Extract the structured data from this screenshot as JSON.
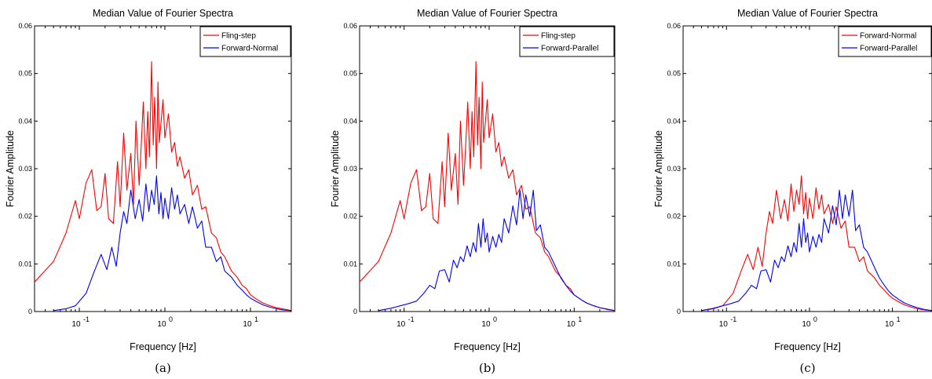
{
  "chart_data": [
    {
      "type": "line",
      "panel": "(a)",
      "title": "Median Value of Fourier Spectra",
      "xlabel": "Frequency [Hz]",
      "ylabel": "Fourier Amplitude",
      "xscale": "log",
      "xlim": [
        0.03,
        30
      ],
      "ylim": [
        0,
        0.06
      ],
      "xticks": [
        {
          "value": 0.1,
          "base": "10",
          "exp": "-1"
        },
        {
          "value": 1,
          "base": "10",
          "exp": "0"
        },
        {
          "value": 10,
          "base": "10",
          "exp": "1"
        }
      ],
      "yticks": [
        0,
        0.01,
        0.02,
        0.03,
        0.04,
        0.05,
        0.06
      ],
      "grid": false,
      "legend": "top-right",
      "series": [
        {
          "name": "Fling-step",
          "color": "#ff0000",
          "x": [
            0.03,
            0.05,
            0.07,
            0.09,
            0.1,
            0.12,
            0.14,
            0.16,
            0.18,
            0.2,
            0.22,
            0.25,
            0.28,
            0.3,
            0.33,
            0.36,
            0.4,
            0.43,
            0.46,
            0.5,
            0.53,
            0.56,
            0.6,
            0.63,
            0.66,
            0.7,
            0.73,
            0.76,
            0.8,
            0.83,
            0.86,
            0.9,
            0.95,
            1.0,
            1.1,
            1.2,
            1.3,
            1.4,
            1.5,
            1.7,
            1.9,
            2.1,
            2.4,
            2.7,
            3.0,
            3.5,
            4.0,
            4.5,
            5.0,
            6.0,
            7.0,
            8.0,
            9.0,
            10.0,
            12.0,
            14.0,
            17.0,
            20.0,
            25.0,
            30.0
          ],
          "values": [
            0.0062,
            0.0105,
            0.0165,
            0.0233,
            0.0195,
            0.027,
            0.0298,
            0.0212,
            0.022,
            0.029,
            0.0195,
            0.0185,
            0.0315,
            0.022,
            0.0375,
            0.0255,
            0.0332,
            0.0225,
            0.04,
            0.0265,
            0.035,
            0.044,
            0.03,
            0.042,
            0.0325,
            0.0525,
            0.035,
            0.045,
            0.03,
            0.0482,
            0.0355,
            0.0395,
            0.0445,
            0.0365,
            0.0415,
            0.0335,
            0.0355,
            0.0305,
            0.0325,
            0.028,
            0.0298,
            0.0245,
            0.0265,
            0.0215,
            0.022,
            0.0165,
            0.0155,
            0.0125,
            0.0115,
            0.0085,
            0.0072,
            0.0055,
            0.0048,
            0.0035,
            0.0025,
            0.0018,
            0.0012,
            0.0008,
            0.0005,
            0.0002
          ]
        },
        {
          "name": "Forward-Normal",
          "color": "#0000ff",
          "x": [
            0.05,
            0.07,
            0.09,
            0.12,
            0.15,
            0.18,
            0.21,
            0.24,
            0.27,
            0.3,
            0.33,
            0.36,
            0.4,
            0.45,
            0.5,
            0.55,
            0.6,
            0.65,
            0.7,
            0.75,
            0.8,
            0.85,
            0.9,
            0.95,
            1.0,
            1.1,
            1.2,
            1.3,
            1.4,
            1.5,
            1.7,
            1.9,
            2.1,
            2.4,
            2.7,
            3.0,
            3.5,
            4.0,
            4.5,
            5.0,
            6.0,
            7.0,
            8.0,
            9.0,
            10.0,
            12.0,
            14.0,
            17.0,
            20.0,
            25.0,
            30.0
          ],
          "values": [
            0.0002,
            0.0006,
            0.0012,
            0.0038,
            0.0085,
            0.012,
            0.0088,
            0.0135,
            0.0095,
            0.0165,
            0.021,
            0.0185,
            0.0255,
            0.0195,
            0.0235,
            0.019,
            0.0268,
            0.021,
            0.0255,
            0.0225,
            0.0285,
            0.0205,
            0.025,
            0.0195,
            0.0238,
            0.0195,
            0.026,
            0.0215,
            0.0245,
            0.0205,
            0.0225,
            0.0185,
            0.022,
            0.0175,
            0.019,
            0.0135,
            0.0135,
            0.0105,
            0.0115,
            0.0085,
            0.0072,
            0.0055,
            0.0045,
            0.0035,
            0.0028,
            0.002,
            0.0014,
            0.0009,
            0.0006,
            0.0003,
            0.0002
          ]
        }
      ]
    },
    {
      "type": "line",
      "panel": "(b)",
      "title": "Median Value of Fourier Spectra",
      "xlabel": "Frequency [Hz]",
      "ylabel": "Fourier Amplitude",
      "xscale": "log",
      "xlim": [
        0.03,
        30
      ],
      "ylim": [
        0,
        0.06
      ],
      "xticks": [
        {
          "value": 0.1,
          "base": "10",
          "exp": "-1"
        },
        {
          "value": 1,
          "base": "10",
          "exp": "0"
        },
        {
          "value": 10,
          "base": "10",
          "exp": "1"
        }
      ],
      "yticks": [
        0,
        0.01,
        0.02,
        0.03,
        0.04,
        0.05,
        0.06
      ],
      "grid": false,
      "legend": "top-right",
      "series": [
        {
          "name": "Fling-step",
          "color": "#ff0000",
          "x": [
            0.03,
            0.05,
            0.07,
            0.09,
            0.1,
            0.12,
            0.14,
            0.16,
            0.18,
            0.2,
            0.22,
            0.25,
            0.28,
            0.3,
            0.33,
            0.36,
            0.4,
            0.43,
            0.46,
            0.5,
            0.53,
            0.56,
            0.6,
            0.63,
            0.66,
            0.7,
            0.73,
            0.76,
            0.8,
            0.83,
            0.86,
            0.9,
            0.95,
            1.0,
            1.1,
            1.2,
            1.3,
            1.4,
            1.5,
            1.7,
            1.9,
            2.1,
            2.4,
            2.7,
            3.0,
            3.5,
            4.0,
            4.5,
            5.0,
            6.0,
            7.0,
            8.0,
            9.0,
            10.0,
            12.0,
            14.0,
            17.0,
            20.0,
            25.0,
            30.0
          ],
          "values": [
            0.0062,
            0.0105,
            0.0165,
            0.0233,
            0.0195,
            0.027,
            0.0298,
            0.0212,
            0.022,
            0.029,
            0.0195,
            0.0185,
            0.0315,
            0.022,
            0.0375,
            0.0255,
            0.0332,
            0.0225,
            0.04,
            0.0265,
            0.035,
            0.044,
            0.03,
            0.042,
            0.0325,
            0.0525,
            0.035,
            0.045,
            0.03,
            0.0482,
            0.0355,
            0.0395,
            0.0445,
            0.0365,
            0.0415,
            0.0335,
            0.0355,
            0.0305,
            0.0325,
            0.028,
            0.0298,
            0.0245,
            0.0265,
            0.0215,
            0.022,
            0.0165,
            0.0155,
            0.0125,
            0.0115,
            0.0085,
            0.0072,
            0.0055,
            0.0048,
            0.0035,
            0.0025,
            0.0018,
            0.0012,
            0.0008,
            0.0005,
            0.0002
          ]
        },
        {
          "name": "Forward-Parallel",
          "color": "#0000ff",
          "x": [
            0.05,
            0.07,
            0.09,
            0.11,
            0.14,
            0.17,
            0.2,
            0.23,
            0.26,
            0.3,
            0.34,
            0.38,
            0.42,
            0.46,
            0.5,
            0.55,
            0.6,
            0.65,
            0.7,
            0.75,
            0.8,
            0.85,
            0.9,
            0.95,
            1.0,
            1.1,
            1.2,
            1.3,
            1.4,
            1.5,
            1.7,
            1.9,
            2.1,
            2.3,
            2.5,
            2.7,
            3.0,
            3.3,
            3.6,
            4.0,
            4.5,
            5.0,
            6.0,
            7.0,
            8.0,
            9.0,
            10.0,
            12.0,
            14.0,
            17.0,
            20.0,
            25.0,
            30.0
          ],
          "values": [
            0.0002,
            0.0007,
            0.0012,
            0.0016,
            0.0022,
            0.0038,
            0.0055,
            0.0048,
            0.0085,
            0.0088,
            0.0062,
            0.0108,
            0.0092,
            0.0115,
            0.0105,
            0.0138,
            0.0115,
            0.0145,
            0.0125,
            0.0185,
            0.0135,
            0.0195,
            0.0145,
            0.0165,
            0.0125,
            0.0158,
            0.0135,
            0.0162,
            0.0145,
            0.0195,
            0.0165,
            0.0222,
            0.0182,
            0.0255,
            0.0195,
            0.0245,
            0.02,
            0.0255,
            0.017,
            0.0182,
            0.0135,
            0.0125,
            0.0095,
            0.007,
            0.0055,
            0.0043,
            0.0035,
            0.0025,
            0.0018,
            0.0012,
            0.0008,
            0.0004,
            0.0002
          ]
        }
      ]
    },
    {
      "type": "line",
      "panel": "(c)",
      "title": "Median Value of Fourier Spectra",
      "xlabel": "Frequency [Hz]",
      "ylabel": "Fourier Amplitude",
      "xscale": "log",
      "xlim": [
        0.03,
        30
      ],
      "ylim": [
        0,
        0.06
      ],
      "xticks": [
        {
          "value": 0.1,
          "base": "10",
          "exp": "-1"
        },
        {
          "value": 1,
          "base": "10",
          "exp": "0"
        },
        {
          "value": 10,
          "base": "10",
          "exp": "1"
        }
      ],
      "yticks": [
        0,
        0.01,
        0.02,
        0.03,
        0.04,
        0.05,
        0.06
      ],
      "grid": false,
      "legend": "top-right",
      "series": [
        {
          "name": "Forward-Normal",
          "color": "#ff0000",
          "x": [
            0.05,
            0.07,
            0.09,
            0.12,
            0.15,
            0.18,
            0.21,
            0.24,
            0.27,
            0.3,
            0.33,
            0.36,
            0.4,
            0.45,
            0.5,
            0.55,
            0.6,
            0.65,
            0.7,
            0.75,
            0.8,
            0.85,
            0.9,
            0.95,
            1.0,
            1.1,
            1.2,
            1.3,
            1.4,
            1.5,
            1.7,
            1.9,
            2.1,
            2.4,
            2.7,
            3.0,
            3.5,
            4.0,
            4.5,
            5.0,
            6.0,
            7.0,
            8.0,
            9.0,
            10.0,
            12.0,
            14.0,
            17.0,
            20.0,
            25.0,
            30.0
          ],
          "values": [
            0.0002,
            0.0006,
            0.0012,
            0.0038,
            0.0085,
            0.012,
            0.0088,
            0.0135,
            0.0095,
            0.0165,
            0.021,
            0.0185,
            0.0255,
            0.0195,
            0.0235,
            0.019,
            0.0268,
            0.021,
            0.0255,
            0.0225,
            0.0285,
            0.0205,
            0.025,
            0.0195,
            0.0238,
            0.0195,
            0.026,
            0.0215,
            0.0245,
            0.0205,
            0.0225,
            0.0185,
            0.022,
            0.0175,
            0.019,
            0.0135,
            0.0135,
            0.0105,
            0.0115,
            0.0085,
            0.0072,
            0.0055,
            0.0045,
            0.0035,
            0.0028,
            0.002,
            0.0014,
            0.0009,
            0.0006,
            0.0003,
            0.0002
          ]
        },
        {
          "name": "Forward-Parallel",
          "color": "#0000ff",
          "x": [
            0.05,
            0.07,
            0.09,
            0.11,
            0.14,
            0.17,
            0.2,
            0.23,
            0.26,
            0.3,
            0.34,
            0.38,
            0.42,
            0.46,
            0.5,
            0.55,
            0.6,
            0.65,
            0.7,
            0.75,
            0.8,
            0.85,
            0.9,
            0.95,
            1.0,
            1.1,
            1.2,
            1.3,
            1.4,
            1.5,
            1.7,
            1.9,
            2.1,
            2.3,
            2.5,
            2.7,
            3.0,
            3.3,
            3.6,
            4.0,
            4.5,
            5.0,
            6.0,
            7.0,
            8.0,
            9.0,
            10.0,
            12.0,
            14.0,
            17.0,
            20.0,
            25.0,
            30.0
          ],
          "values": [
            0.0002,
            0.0007,
            0.0012,
            0.0016,
            0.0022,
            0.0038,
            0.0055,
            0.0048,
            0.0085,
            0.0088,
            0.0062,
            0.0108,
            0.0092,
            0.0115,
            0.0105,
            0.0138,
            0.0115,
            0.0145,
            0.0125,
            0.0185,
            0.0135,
            0.0195,
            0.0145,
            0.0165,
            0.0125,
            0.0158,
            0.0135,
            0.0162,
            0.0145,
            0.0195,
            0.0165,
            0.0222,
            0.0182,
            0.0255,
            0.0195,
            0.0245,
            0.02,
            0.0255,
            0.017,
            0.0182,
            0.0135,
            0.0125,
            0.0095,
            0.007,
            0.0055,
            0.0043,
            0.0035,
            0.0025,
            0.0018,
            0.0012,
            0.0008,
            0.0004,
            0.0002
          ]
        }
      ]
    }
  ]
}
